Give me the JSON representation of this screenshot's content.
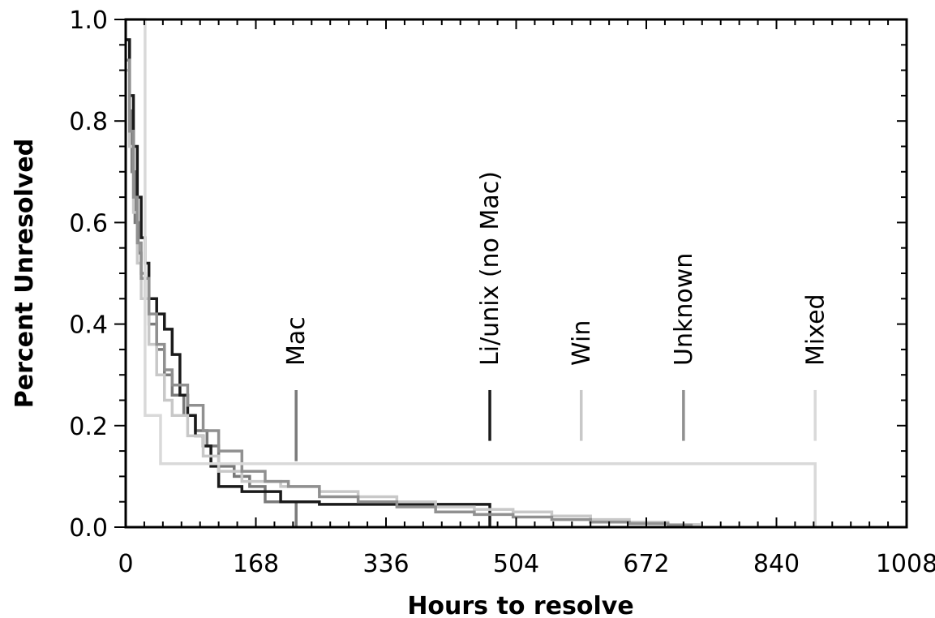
{
  "chart_data": {
    "type": "line",
    "xlabel": "Hours to resolve",
    "ylabel": "Percent Unresolved",
    "xlim": [
      0,
      1008
    ],
    "ylim": [
      0,
      1.0
    ],
    "x_ticks": [
      0,
      168,
      336,
      504,
      672,
      840,
      1008
    ],
    "x_tick_labels": [
      "0",
      "168",
      "336",
      "504",
      "672",
      "840",
      "1008"
    ],
    "y_ticks": [
      0.0,
      0.2,
      0.4,
      0.6,
      0.8,
      1.0
    ],
    "y_tick_labels": [
      "0.0",
      "0.2",
      "0.4",
      "0.6",
      "0.8",
      "1.0"
    ],
    "grid": false,
    "series": [
      {
        "name": "Mac",
        "color": "#7a7a7a",
        "marker_x": 220,
        "marker_y": [
          0.13,
          0.27
        ],
        "x": [
          0,
          5,
          8,
          12,
          16,
          20,
          25,
          30,
          40,
          50,
          60,
          75,
          90,
          105,
          120,
          140,
          160,
          180,
          220
        ],
        "y": [
          0.96,
          0.82,
          0.7,
          0.6,
          0.54,
          0.5,
          0.45,
          0.4,
          0.35,
          0.3,
          0.26,
          0.22,
          0.19,
          0.16,
          0.12,
          0.1,
          0.08,
          0.05,
          0.0
        ]
      },
      {
        "name": "Li/unix (no Mac)",
        "color": "#1a1a1a",
        "marker_x": 470,
        "marker_y": [
          0.17,
          0.27
        ],
        "x": [
          0,
          5,
          10,
          15,
          20,
          25,
          30,
          40,
          50,
          60,
          70,
          80,
          90,
          100,
          110,
          120,
          150,
          200,
          250,
          300,
          350,
          400,
          470
        ],
        "y": [
          0.96,
          0.85,
          0.75,
          0.65,
          0.57,
          0.52,
          0.45,
          0.42,
          0.39,
          0.34,
          0.26,
          0.22,
          0.18,
          0.16,
          0.12,
          0.08,
          0.07,
          0.05,
          0.045,
          0.045,
          0.045,
          0.045,
          0.0
        ]
      },
      {
        "name": "Win",
        "color": "#c8c8c8",
        "marker_x": 588,
        "marker_y": [
          0.17,
          0.27
        ],
        "x": [
          0,
          5,
          10,
          15,
          20,
          30,
          40,
          50,
          60,
          80,
          100,
          120,
          150,
          200,
          250,
          300,
          350,
          400,
          450,
          500,
          550,
          600,
          650,
          700,
          740
        ],
        "y": [
          0.9,
          0.75,
          0.62,
          0.52,
          0.45,
          0.36,
          0.3,
          0.25,
          0.22,
          0.18,
          0.14,
          0.11,
          0.09,
          0.08,
          0.07,
          0.06,
          0.05,
          0.04,
          0.035,
          0.03,
          0.022,
          0.015,
          0.01,
          0.005,
          0.0
        ]
      },
      {
        "name": "Unknown",
        "color": "#909090",
        "marker_x": 720,
        "marker_y": [
          0.17,
          0.27
        ],
        "x": [
          0,
          5,
          10,
          15,
          20,
          30,
          40,
          50,
          60,
          80,
          100,
          120,
          150,
          180,
          210,
          250,
          300,
          350,
          400,
          450,
          500,
          550,
          600,
          650,
          700,
          730
        ],
        "y": [
          0.92,
          0.78,
          0.65,
          0.56,
          0.49,
          0.42,
          0.36,
          0.31,
          0.28,
          0.24,
          0.19,
          0.15,
          0.11,
          0.09,
          0.08,
          0.06,
          0.05,
          0.04,
          0.03,
          0.025,
          0.02,
          0.015,
          0.01,
          0.007,
          0.004,
          0.0
        ]
      },
      {
        "name": "Mixed",
        "color": "#d9d9d9",
        "marker_x": 890,
        "marker_y": [
          0.17,
          0.27
        ],
        "x": [
          0,
          25,
          45,
          890
        ],
        "y": [
          1.0,
          0.22,
          0.125,
          0.0
        ]
      }
    ]
  }
}
